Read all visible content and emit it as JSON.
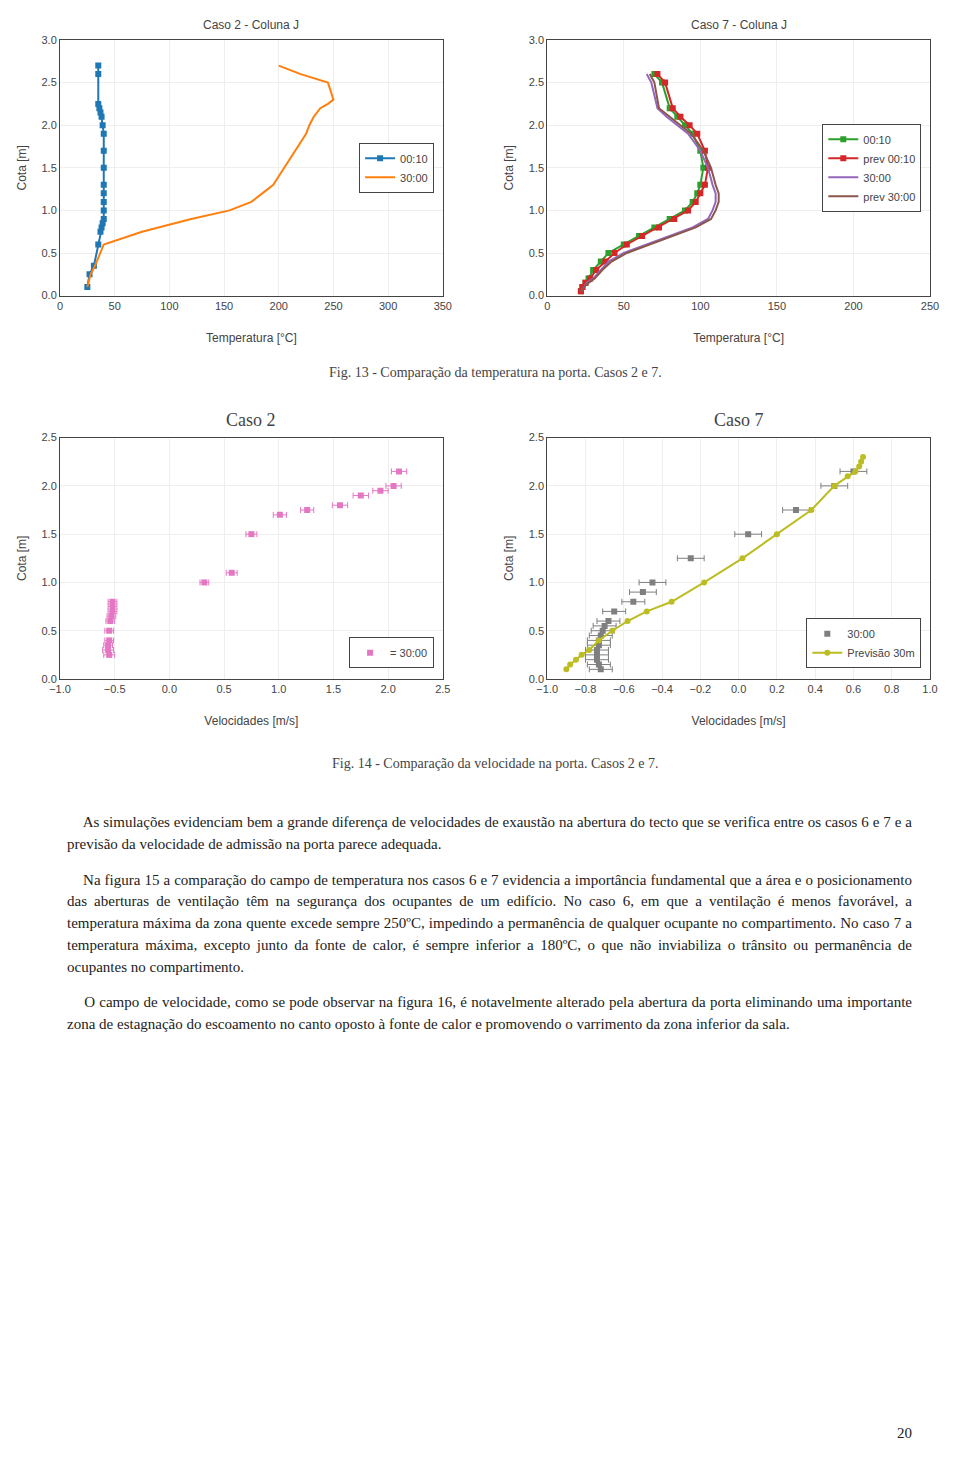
{
  "chart_data": [
    {
      "type": "line",
      "title": "Caso 2 - Coluna J",
      "x_label": "Temperatura [°C]",
      "y_label": "Cota [m]",
      "xlim": [
        0,
        350
      ],
      "xticks": [
        0,
        50,
        100,
        150,
        200,
        250,
        300,
        350
      ],
      "ylim": [
        0,
        3.0
      ],
      "yticks": [
        {
          "value": 0.0,
          "label": "0.0"
        },
        0.5,
        {
          "value": 1.0,
          "label": "1.0"
        },
        1.5,
        {
          "value": 2.0,
          "label": "2.0"
        },
        2.5,
        {
          "value": 3.0,
          "label": "3.0"
        }
      ],
      "grid": true,
      "legend": "right",
      "series": [
        {
          "name": "00:10",
          "marker": "square",
          "x": [
            25,
            27,
            31,
            35,
            37,
            38,
            39,
            40,
            40,
            40,
            40,
            40,
            40,
            40,
            40,
            39,
            38,
            37,
            36,
            35,
            35,
            35
          ],
          "values": [
            0.1,
            0.25,
            0.35,
            0.6,
            0.75,
            0.8,
            0.85,
            0.9,
            1.0,
            1.1,
            1.2,
            1.3,
            1.5,
            1.7,
            1.9,
            2.0,
            2.1,
            2.15,
            2.2,
            2.25,
            2.6,
            2.7
          ]
        },
        {
          "name": "30:00",
          "marker": "none",
          "x": [
            25,
            28,
            32,
            40,
            75,
            120,
            155,
            175,
            185,
            195,
            200,
            205,
            210,
            215,
            220,
            225,
            228,
            232,
            238,
            245,
            250,
            245,
            220,
            200
          ],
          "values": [
            0.1,
            0.25,
            0.35,
            0.6,
            0.75,
            0.9,
            1.0,
            1.1,
            1.2,
            1.3,
            1.4,
            1.5,
            1.6,
            1.7,
            1.8,
            1.9,
            2.0,
            2.1,
            2.2,
            2.25,
            2.3,
            2.5,
            2.6,
            2.7
          ]
        }
      ]
    },
    {
      "type": "line",
      "title": "Caso 7 - Coluna J",
      "x_label": "Temperatura [°C]",
      "y_label": "Cota [m]",
      "xlim": [
        0,
        250
      ],
      "xticks": [
        0,
        50,
        100,
        150,
        200,
        250
      ],
      "ylim": [
        0,
        3.0
      ],
      "yticks": [
        {
          "value": 0.0,
          "label": "0.0"
        },
        0.5,
        {
          "value": 1.0,
          "label": "1.0"
        },
        1.5,
        {
          "value": 2.0,
          "label": "2.0"
        },
        2.5,
        {
          "value": 3.0,
          "label": "3.0"
        }
      ],
      "grid": true,
      "legend": "right",
      "series": [
        {
          "name": "00:10",
          "marker": "square",
          "x": [
            22,
            23,
            25,
            27,
            30,
            35,
            40,
            50,
            60,
            70,
            80,
            90,
            95,
            98,
            100,
            102,
            100,
            95,
            90,
            85,
            80,
            75,
            70
          ],
          "values": [
            0.05,
            0.1,
            0.15,
            0.2,
            0.3,
            0.4,
            0.5,
            0.6,
            0.7,
            0.8,
            0.9,
            1.0,
            1.1,
            1.2,
            1.3,
            1.5,
            1.7,
            1.9,
            2.0,
            2.1,
            2.2,
            2.5,
            2.6
          ]
        },
        {
          "name": "prev 00:10",
          "marker": "square",
          "x": [
            22,
            23,
            25,
            28,
            32,
            38,
            44,
            52,
            62,
            73,
            83,
            92,
            97,
            100,
            103,
            105,
            103,
            98,
            93,
            87,
            82,
            77,
            72
          ],
          "values": [
            0.05,
            0.1,
            0.15,
            0.2,
            0.3,
            0.4,
            0.5,
            0.6,
            0.7,
            0.8,
            0.9,
            1.0,
            1.1,
            1.2,
            1.3,
            1.5,
            1.7,
            1.9,
            2.0,
            2.1,
            2.2,
            2.5,
            2.6
          ]
        },
        {
          "name": "30:00",
          "marker": "none",
          "x": [
            22,
            24,
            26,
            30,
            35,
            40,
            50,
            65,
            80,
            95,
            105,
            108,
            110,
            110,
            108,
            105,
            100,
            92,
            85,
            78,
            72,
            68,
            65
          ],
          "values": [
            0.05,
            0.1,
            0.15,
            0.2,
            0.3,
            0.4,
            0.5,
            0.6,
            0.7,
            0.8,
            0.9,
            1.0,
            1.1,
            1.2,
            1.3,
            1.5,
            1.7,
            1.9,
            2.0,
            2.1,
            2.2,
            2.5,
            2.6
          ]
        },
        {
          "name": "prev 30:00",
          "marker": "none",
          "x": [
            22,
            24,
            27,
            31,
            36,
            42,
            52,
            67,
            82,
            97,
            107,
            110,
            112,
            112,
            110,
            107,
            102,
            94,
            87,
            80,
            73,
            70,
            67
          ],
          "values": [
            0.05,
            0.1,
            0.15,
            0.2,
            0.3,
            0.4,
            0.5,
            0.6,
            0.7,
            0.8,
            0.9,
            1.0,
            1.1,
            1.2,
            1.3,
            1.5,
            1.7,
            1.9,
            2.0,
            2.1,
            2.2,
            2.5,
            2.6
          ]
        }
      ]
    },
    {
      "type": "scatter",
      "title": "Caso 2",
      "x_label": "Velocidades [m/s]",
      "y_label": "Cota [m]",
      "xlim": [
        -1,
        2.5
      ],
      "xticks": [
        {
          "value": -1,
          "label": "−1.0"
        },
        {
          "value": -0.5,
          "label": "−0.5"
        },
        {
          "value": 0,
          "label": "0.0"
        },
        0.5,
        {
          "value": 1,
          "label": "1.0"
        },
        1.5,
        {
          "value": 2,
          "label": "2.0"
        },
        2.5
      ],
      "ylim": [
        0,
        2.5
      ],
      "yticks": [
        {
          "value": 0,
          "label": "0.0"
        },
        0.5,
        {
          "value": 1.0,
          "label": "1.0"
        },
        1.5,
        {
          "value": 2.0,
          "label": "2.0"
        },
        2.5
      ],
      "grid": true,
      "legend": "lower right",
      "series": [
        {
          "name": "= 30:00",
          "type": "scatter",
          "marker": "square",
          "line_style": "none",
          "x": [
            -0.55,
            -0.56,
            -0.56,
            -0.55,
            -0.55,
            -0.54,
            -0.53,
            -0.52,
            -0.52,
            -0.52,
            0.32,
            0.57,
            0.75,
            1.01,
            1.26,
            1.56,
            1.75,
            1.93,
            2.05,
            2.1
          ],
          "values": [
            0.25,
            0.3,
            0.35,
            0.4,
            0.5,
            0.6,
            0.65,
            0.7,
            0.75,
            0.8,
            1.0,
            1.1,
            1.5,
            1.7,
            1.75,
            1.8,
            1.9,
            1.95,
            2.0,
            2.15
          ],
          "xerr": [
            0.05,
            0.05,
            0.04,
            0.04,
            0.04,
            0.04,
            0.04,
            0.04,
            0.04,
            0.04,
            0.04,
            0.05,
            0.05,
            0.06,
            0.06,
            0.07,
            0.07,
            0.07,
            0.07,
            0.07
          ]
        }
      ]
    },
    {
      "type": "line",
      "title": "Caso 7",
      "x_label": "Velocidades [m/s]",
      "y_label": "Cota [m]",
      "xlim": [
        -1,
        1
      ],
      "xticks": [
        {
          "value": -1,
          "label": "−1.0"
        },
        {
          "value": -0.8,
          "label": "−0.8"
        },
        {
          "value": -0.6,
          "label": "−0.6"
        },
        {
          "value": -0.4,
          "label": "−0.4"
        },
        {
          "value": -0.2,
          "label": "−0.2"
        },
        {
          "value": 0,
          "label": "0.0"
        },
        0.2,
        0.4,
        0.6,
        0.8,
        {
          "value": 1,
          "label": "1.0"
        }
      ],
      "ylim": [
        0,
        2.5
      ],
      "yticks": [
        {
          "value": 0,
          "label": "0.0"
        },
        0.5,
        {
          "value": 1.0,
          "label": "1.0"
        },
        1.5,
        {
          "value": 2.0,
          "label": "2.0"
        },
        2.5
      ],
      "grid": true,
      "legend": "lower right",
      "series": [
        {
          "name": "30:00",
          "type": "scatter",
          "marker": "square",
          "line_style": "none",
          "x": [
            -0.72,
            -0.73,
            -0.74,
            -0.74,
            -0.74,
            -0.73,
            -0.73,
            -0.72,
            -0.71,
            -0.7,
            -0.68,
            -0.65,
            -0.55,
            -0.5,
            -0.45,
            -0.25,
            0.05,
            0.3,
            0.5,
            0.6
          ],
          "values": [
            0.1,
            0.15,
            0.2,
            0.25,
            0.3,
            0.35,
            0.4,
            0.45,
            0.5,
            0.55,
            0.6,
            0.7,
            0.8,
            0.9,
            1.0,
            1.25,
            1.5,
            1.75,
            2.0,
            2.15
          ],
          "xerr": [
            0.06,
            0.06,
            0.06,
            0.06,
            0.06,
            0.06,
            0.06,
            0.06,
            0.06,
            0.06,
            0.06,
            0.06,
            0.06,
            0.07,
            0.07,
            0.07,
            0.07,
            0.07,
            0.07,
            0.07
          ]
        },
        {
          "name": "Previsão 30m",
          "type": "line",
          "marker": "circle",
          "line_style": "solid",
          "x": [
            -0.9,
            -0.88,
            -0.85,
            -0.82,
            -0.78,
            -0.73,
            -0.66,
            -0.58,
            -0.48,
            -0.35,
            -0.18,
            0.02,
            0.2,
            0.38,
            0.5,
            0.57,
            0.61,
            0.63,
            0.64,
            0.65
          ],
          "values": [
            0.1,
            0.15,
            0.2,
            0.25,
            0.3,
            0.4,
            0.5,
            0.6,
            0.7,
            0.8,
            1.0,
            1.25,
            1.5,
            1.75,
            2.0,
            2.1,
            2.15,
            2.2,
            2.25,
            2.3
          ]
        }
      ]
    }
  ],
  "annotations": [
    "Fig. 13 - Comparação da temperatura na porta. Casos 2 e 7.",
    "Fig. 14 - Comparação da velocidade na porta. Casos 2 e 7.",
    "    As simulações evidenciam bem a grande diferença de velocidades de exaustão na abertura do tecto que se verifica entre os casos 6 e 7 e a previsão da velocidade de admissão na porta parece adequada.",
    "    Na figura 15 a comparação do campo de temperatura nos casos 6 e 7 evidencia a importância fundamental que a área e o posicionamento das aberturas de ventilação têm na segurança dos ocupantes de um edifício. No caso 6, em que a ventilação é menos favorável, a temperatura máxima da zona quente excede sempre 250ºC, impedindo a permanência de qualquer ocupante no compartimento. No caso 7 a temperatura máxima, excepto junto da fonte de calor, é sempre inferior a 180ºC, o que não inviabiliza o trânsito ou permanência de ocupantes no compartimento.",
    "    O campo de velocidade, como se pode observar na figura 16, é notavelmente alterado pela abertura da porta eliminando uma importante zona de estagnação do escoamento no canto oposto à fonte de calor e promovendo o varrimento da zona inferior da sala.",
    "20"
  ]
}
